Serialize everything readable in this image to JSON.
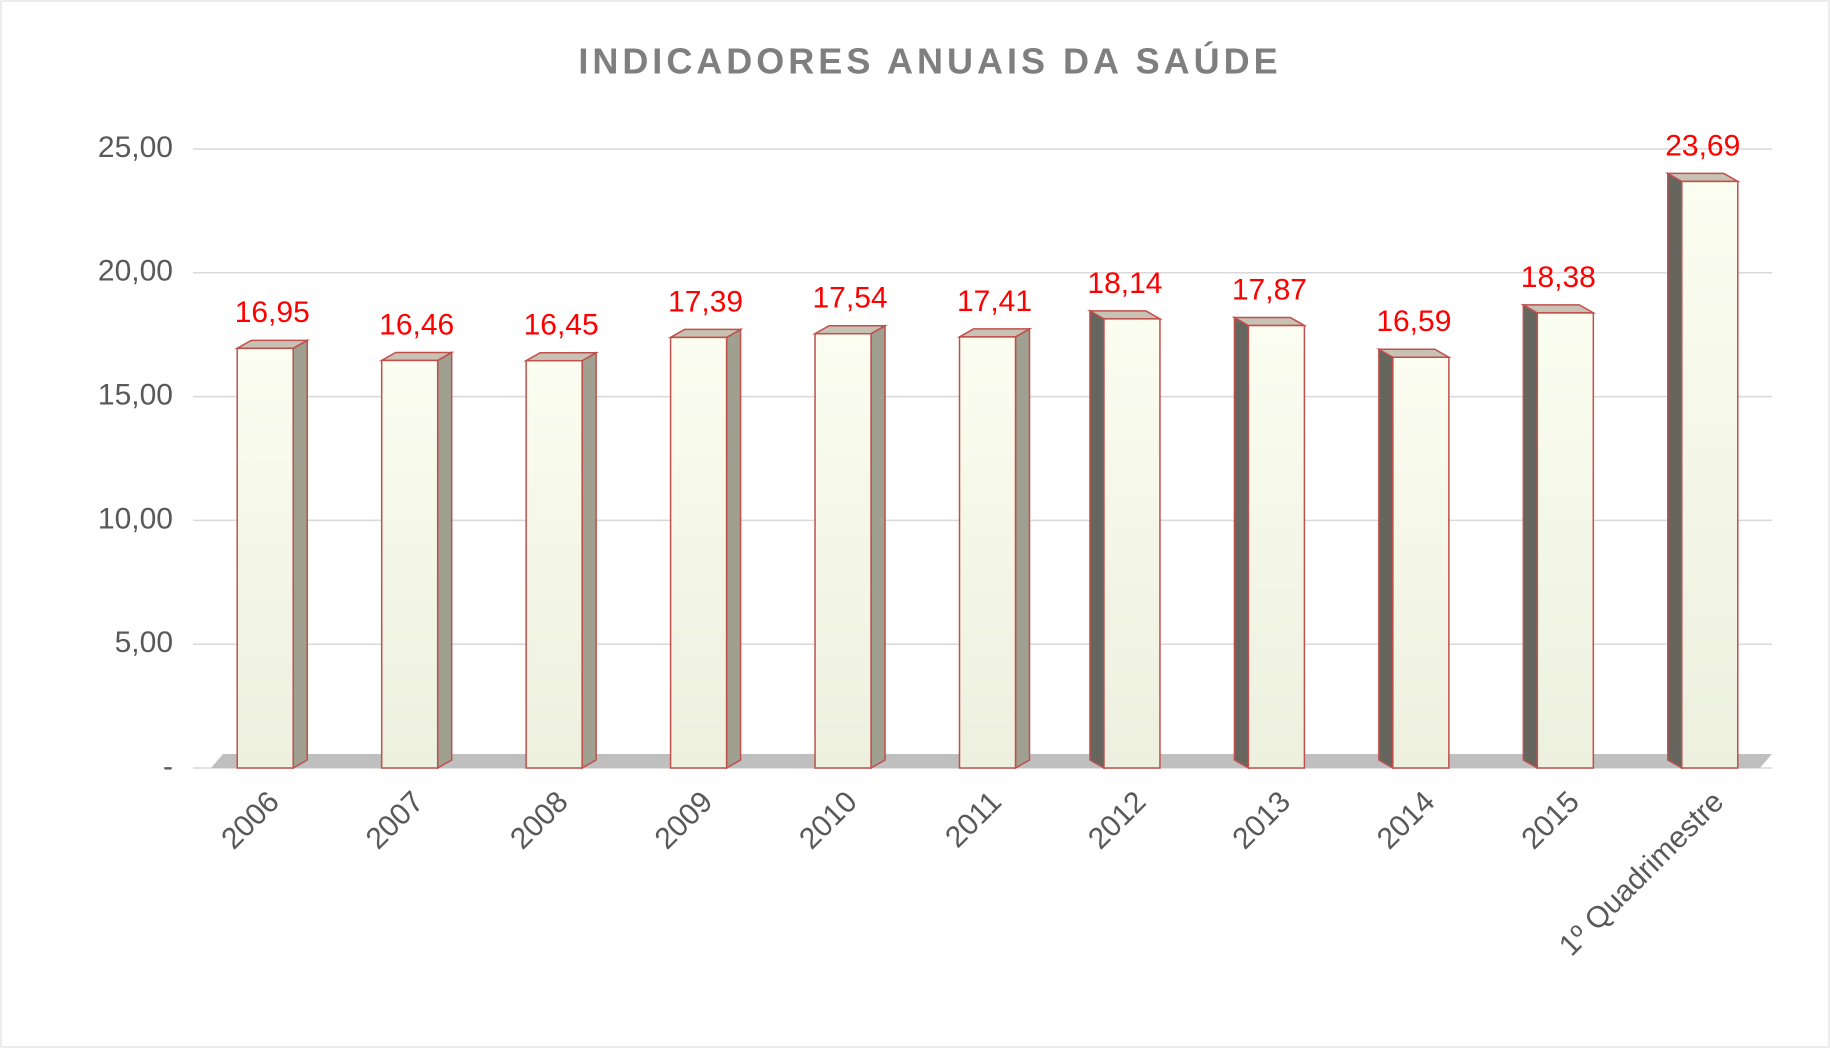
{
  "chart_data": {
    "type": "bar",
    "title": "INDICADORES ANUAIS DA SAÚDE",
    "categories": [
      "2006",
      "2007",
      "2008",
      "2009",
      "2010",
      "2011",
      "2012",
      "2013",
      "2014",
      "2015",
      "1º Quadrimestre"
    ],
    "values": [
      16.95,
      16.46,
      16.45,
      17.39,
      17.54,
      17.41,
      18.14,
      17.87,
      16.59,
      18.38,
      23.69
    ],
    "value_labels": [
      "16,95",
      "16,46",
      "16,45",
      "17,39",
      "17,54",
      "17,41",
      "18,14",
      "17,87",
      "16,59",
      "18,38",
      "23,69"
    ],
    "color": "#f2f4e4",
    "ylim": [
      0,
      25
    ],
    "yticks": [
      {
        "value": 0,
        "label": "-"
      },
      {
        "value": 5,
        "label": "5,00"
      },
      {
        "value": 10,
        "label": "10,00"
      },
      {
        "value": 15,
        "label": "15,00"
      },
      {
        "value": 20,
        "label": "20,00"
      },
      {
        "value": 25,
        "label": "25,00"
      }
    ],
    "grid": true
  }
}
